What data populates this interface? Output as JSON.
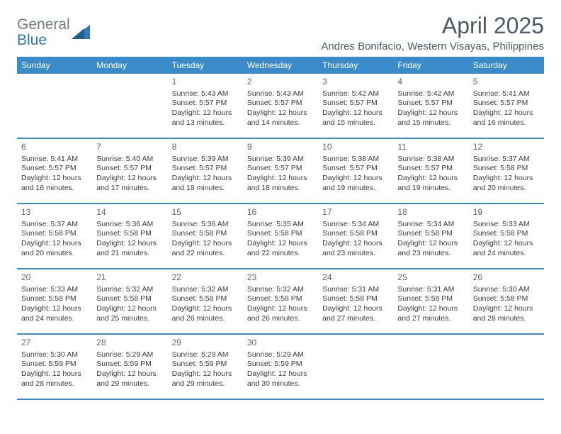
{
  "brand": {
    "word1": "General",
    "word2": "Blue",
    "color_general": "#6f7a84",
    "color_blue": "#2f79b8",
    "triangle_fill": "#2f79b8"
  },
  "header": {
    "title": "April 2025",
    "location": "Andres Bonifacio, Western Visayas, Philippines",
    "title_color": "#4d5a66",
    "title_fontsize": 32,
    "location_fontsize": 15
  },
  "calendar": {
    "header_bg": "#3b8bca",
    "header_text_color": "#ffffff",
    "row_border_color": "#3b8bca",
    "weekday_fontsize": 12,
    "cell_fontsize": 10.5,
    "daynum_color": "#5a6a77",
    "weekdays": [
      "Sunday",
      "Monday",
      "Tuesday",
      "Wednesday",
      "Thursday",
      "Friday",
      "Saturday"
    ],
    "weeks": [
      [
        null,
        null,
        {
          "n": "1",
          "sr": "Sunrise: 5:43 AM",
          "ss": "Sunset: 5:57 PM",
          "d1": "Daylight: 12 hours",
          "d2": "and 13 minutes."
        },
        {
          "n": "2",
          "sr": "Sunrise: 5:43 AM",
          "ss": "Sunset: 5:57 PM",
          "d1": "Daylight: 12 hours",
          "d2": "and 14 minutes."
        },
        {
          "n": "3",
          "sr": "Sunrise: 5:42 AM",
          "ss": "Sunset: 5:57 PM",
          "d1": "Daylight: 12 hours",
          "d2": "and 15 minutes."
        },
        {
          "n": "4",
          "sr": "Sunrise: 5:42 AM",
          "ss": "Sunset: 5:57 PM",
          "d1": "Daylight: 12 hours",
          "d2": "and 15 minutes."
        },
        {
          "n": "5",
          "sr": "Sunrise: 5:41 AM",
          "ss": "Sunset: 5:57 PM",
          "d1": "Daylight: 12 hours",
          "d2": "and 16 minutes."
        }
      ],
      [
        {
          "n": "6",
          "sr": "Sunrise: 5:41 AM",
          "ss": "Sunset: 5:57 PM",
          "d1": "Daylight: 12 hours",
          "d2": "and 16 minutes."
        },
        {
          "n": "7",
          "sr": "Sunrise: 5:40 AM",
          "ss": "Sunset: 5:57 PM",
          "d1": "Daylight: 12 hours",
          "d2": "and 17 minutes."
        },
        {
          "n": "8",
          "sr": "Sunrise: 5:39 AM",
          "ss": "Sunset: 5:57 PM",
          "d1": "Daylight: 12 hours",
          "d2": "and 18 minutes."
        },
        {
          "n": "9",
          "sr": "Sunrise: 5:39 AM",
          "ss": "Sunset: 5:57 PM",
          "d1": "Daylight: 12 hours",
          "d2": "and 18 minutes."
        },
        {
          "n": "10",
          "sr": "Sunrise: 5:38 AM",
          "ss": "Sunset: 5:57 PM",
          "d1": "Daylight: 12 hours",
          "d2": "and 19 minutes."
        },
        {
          "n": "11",
          "sr": "Sunrise: 5:38 AM",
          "ss": "Sunset: 5:57 PM",
          "d1": "Daylight: 12 hours",
          "d2": "and 19 minutes."
        },
        {
          "n": "12",
          "sr": "Sunrise: 5:37 AM",
          "ss": "Sunset: 5:58 PM",
          "d1": "Daylight: 12 hours",
          "d2": "and 20 minutes."
        }
      ],
      [
        {
          "n": "13",
          "sr": "Sunrise: 5:37 AM",
          "ss": "Sunset: 5:58 PM",
          "d1": "Daylight: 12 hours",
          "d2": "and 20 minutes."
        },
        {
          "n": "14",
          "sr": "Sunrise: 5:36 AM",
          "ss": "Sunset: 5:58 PM",
          "d1": "Daylight: 12 hours",
          "d2": "and 21 minutes."
        },
        {
          "n": "15",
          "sr": "Sunrise: 5:36 AM",
          "ss": "Sunset: 5:58 PM",
          "d1": "Daylight: 12 hours",
          "d2": "and 22 minutes."
        },
        {
          "n": "16",
          "sr": "Sunrise: 5:35 AM",
          "ss": "Sunset: 5:58 PM",
          "d1": "Daylight: 12 hours",
          "d2": "and 22 minutes."
        },
        {
          "n": "17",
          "sr": "Sunrise: 5:34 AM",
          "ss": "Sunset: 5:58 PM",
          "d1": "Daylight: 12 hours",
          "d2": "and 23 minutes."
        },
        {
          "n": "18",
          "sr": "Sunrise: 5:34 AM",
          "ss": "Sunset: 5:58 PM",
          "d1": "Daylight: 12 hours",
          "d2": "and 23 minutes."
        },
        {
          "n": "19",
          "sr": "Sunrise: 5:33 AM",
          "ss": "Sunset: 5:58 PM",
          "d1": "Daylight: 12 hours",
          "d2": "and 24 minutes."
        }
      ],
      [
        {
          "n": "20",
          "sr": "Sunrise: 5:33 AM",
          "ss": "Sunset: 5:58 PM",
          "d1": "Daylight: 12 hours",
          "d2": "and 24 minutes."
        },
        {
          "n": "21",
          "sr": "Sunrise: 5:32 AM",
          "ss": "Sunset: 5:58 PM",
          "d1": "Daylight: 12 hours",
          "d2": "and 25 minutes."
        },
        {
          "n": "22",
          "sr": "Sunrise: 5:32 AM",
          "ss": "Sunset: 5:58 PM",
          "d1": "Daylight: 12 hours",
          "d2": "and 26 minutes."
        },
        {
          "n": "23",
          "sr": "Sunrise: 5:32 AM",
          "ss": "Sunset: 5:58 PM",
          "d1": "Daylight: 12 hours",
          "d2": "and 26 minutes."
        },
        {
          "n": "24",
          "sr": "Sunrise: 5:31 AM",
          "ss": "Sunset: 5:58 PM",
          "d1": "Daylight: 12 hours",
          "d2": "and 27 minutes."
        },
        {
          "n": "25",
          "sr": "Sunrise: 5:31 AM",
          "ss": "Sunset: 5:58 PM",
          "d1": "Daylight: 12 hours",
          "d2": "and 27 minutes."
        },
        {
          "n": "26",
          "sr": "Sunrise: 5:30 AM",
          "ss": "Sunset: 5:58 PM",
          "d1": "Daylight: 12 hours",
          "d2": "and 28 minutes."
        }
      ],
      [
        {
          "n": "27",
          "sr": "Sunrise: 5:30 AM",
          "ss": "Sunset: 5:59 PM",
          "d1": "Daylight: 12 hours",
          "d2": "and 28 minutes."
        },
        {
          "n": "28",
          "sr": "Sunrise: 5:29 AM",
          "ss": "Sunset: 5:59 PM",
          "d1": "Daylight: 12 hours",
          "d2": "and 29 minutes."
        },
        {
          "n": "29",
          "sr": "Sunrise: 5:29 AM",
          "ss": "Sunset: 5:59 PM",
          "d1": "Daylight: 12 hours",
          "d2": "and 29 minutes."
        },
        {
          "n": "30",
          "sr": "Sunrise: 5:29 AM",
          "ss": "Sunset: 5:59 PM",
          "d1": "Daylight: 12 hours",
          "d2": "and 30 minutes."
        },
        null,
        null,
        null
      ]
    ]
  }
}
